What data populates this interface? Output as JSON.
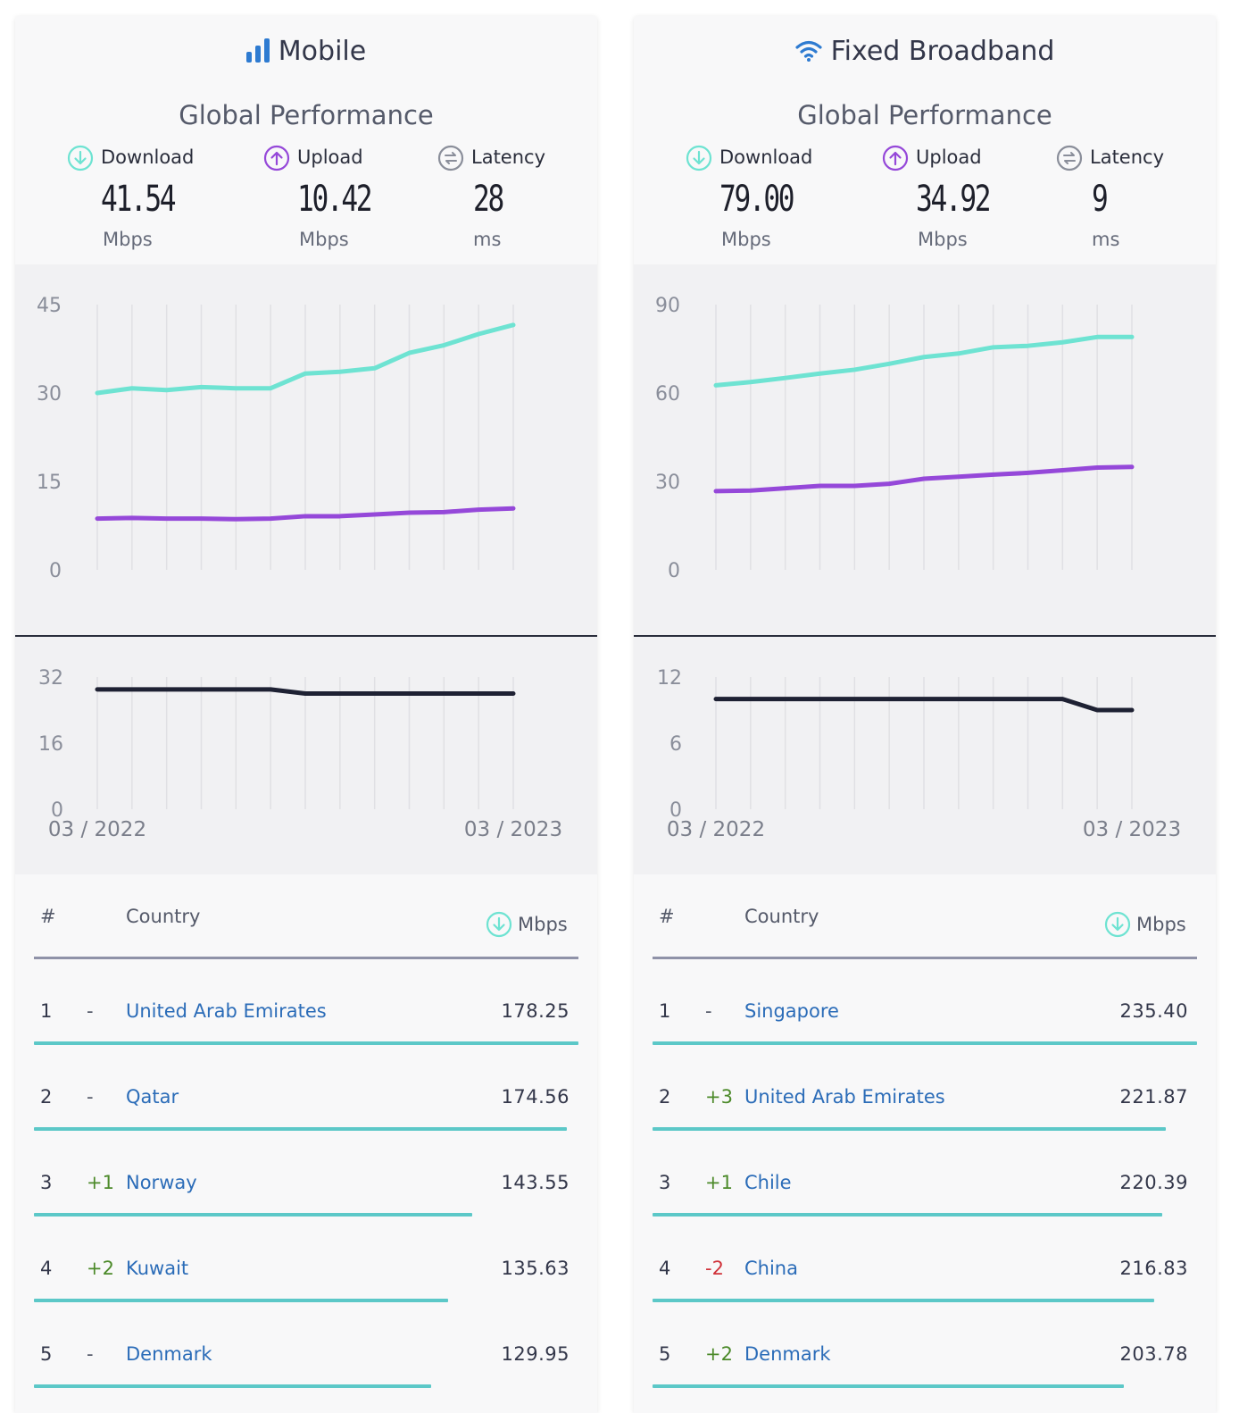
{
  "colors": {
    "download": "#6ee3d2",
    "upload": "#9548d9",
    "latency": "#1e2133",
    "bar": "#5cc8c8",
    "link": "#2b6cb8",
    "icon_blue": "#2e7bd1"
  },
  "panels": [
    {
      "title": "Mobile",
      "title_icon": "signal-bars-icon",
      "subtitle": "Global Performance",
      "metrics": [
        {
          "label": "Download",
          "icon": "download-arrow-icon",
          "value": "41.54",
          "unit": "Mbps"
        },
        {
          "label": "Upload",
          "icon": "upload-arrow-icon",
          "value": "10.42",
          "unit": "Mbps"
        },
        {
          "label": "Latency",
          "icon": "latency-icon",
          "value": "28",
          "unit": "ms"
        }
      ],
      "table_header": {
        "rank": "#",
        "country": "Country",
        "value": "Mbps"
      },
      "rows": [
        {
          "rank": "1",
          "change": "-",
          "country": "United Arab Emirates",
          "value": "178.25",
          "fraction": 1.0
        },
        {
          "rank": "2",
          "change": "-",
          "country": "Qatar",
          "value": "174.56",
          "fraction": 0.979
        },
        {
          "rank": "3",
          "change": "+1",
          "country": "Norway",
          "value": "143.55",
          "fraction": 0.805
        },
        {
          "rank": "4",
          "change": "+2",
          "country": "Kuwait",
          "value": "135.63",
          "fraction": 0.761
        },
        {
          "rank": "5",
          "change": "-",
          "country": "Denmark",
          "value": "129.95",
          "fraction": 0.729
        }
      ]
    },
    {
      "title": "Fixed Broadband",
      "title_icon": "wifi-icon",
      "subtitle": "Global Performance",
      "metrics": [
        {
          "label": "Download",
          "icon": "download-arrow-icon",
          "value": "79.00",
          "unit": "Mbps"
        },
        {
          "label": "Upload",
          "icon": "upload-arrow-icon",
          "value": "34.92",
          "unit": "Mbps"
        },
        {
          "label": "Latency",
          "icon": "latency-icon",
          "value": "9",
          "unit": "ms"
        }
      ],
      "table_header": {
        "rank": "#",
        "country": "Country",
        "value": "Mbps"
      },
      "rows": [
        {
          "rank": "1",
          "change": "-",
          "country": "Singapore",
          "value": "235.40",
          "fraction": 1.0
        },
        {
          "rank": "2",
          "change": "+3",
          "country": "United Arab Emirates",
          "value": "221.87",
          "fraction": 0.943
        },
        {
          "rank": "3",
          "change": "+1",
          "country": "Chile",
          "value": "220.39",
          "fraction": 0.936
        },
        {
          "rank": "4",
          "change": "-2",
          "country": "China",
          "value": "216.83",
          "fraction": 0.921
        },
        {
          "rank": "5",
          "change": "+2",
          "country": "Denmark",
          "value": "203.78",
          "fraction": 0.866
        }
      ]
    }
  ],
  "chart_data": [
    {
      "type": "line",
      "panel": "Mobile",
      "x": [
        "03 / 2022",
        "04 / 2022",
        "05 / 2022",
        "06 / 2022",
        "07 / 2022",
        "08 / 2022",
        "09 / 2022",
        "10 / 2022",
        "11 / 2022",
        "12 / 2022",
        "01 / 2023",
        "02 / 2023",
        "03 / 2023"
      ],
      "x_tick_labels": [
        "03 / 2022",
        "03 / 2023"
      ],
      "speed": {
        "ylim": [
          0,
          45
        ],
        "yticks": [
          0,
          15,
          30,
          45
        ],
        "series": [
          {
            "values": [
              30.0,
              30.8,
              30.5,
              31.0,
              30.8,
              30.8,
              33.3,
              33.6,
              34.2,
              36.8,
              38.1,
              40.0,
              41.54
            ]
          },
          {
            "values": [
              8.7,
              8.8,
              8.7,
              8.7,
              8.6,
              8.7,
              9.1,
              9.1,
              9.4,
              9.7,
              9.8,
              10.2,
              10.42
            ]
          }
        ]
      },
      "latency": {
        "ylim": [
          0,
          32
        ],
        "yticks": [
          0,
          16,
          32
        ],
        "series": [
          {
            "values": [
              29,
              29,
              29,
              29,
              29,
              29,
              28,
              28,
              28,
              28,
              28,
              28,
              28
            ]
          }
        ]
      },
      "grid": true
    },
    {
      "type": "line",
      "panel": "Fixed Broadband",
      "x": [
        "03 / 2022",
        "04 / 2022",
        "05 / 2022",
        "06 / 2022",
        "07 / 2022",
        "08 / 2022",
        "09 / 2022",
        "10 / 2022",
        "11 / 2022",
        "12 / 2022",
        "01 / 2023",
        "02 / 2023",
        "03 / 2023"
      ],
      "x_tick_labels": [
        "03 / 2022",
        "03 / 2023"
      ],
      "speed": {
        "ylim": [
          0,
          90
        ],
        "yticks": [
          0,
          30,
          60,
          90
        ],
        "series": [
          {
            "values": [
              62.6,
              63.7,
              65.1,
              66.6,
              67.9,
              69.9,
              72.2,
              73.4,
              75.5,
              76.0,
              77.2,
              79.0,
              79.0
            ]
          },
          {
            "values": [
              26.7,
              26.9,
              27.7,
              28.5,
              28.5,
              29.2,
              30.9,
              31.6,
              32.3,
              32.9,
              33.8,
              34.7,
              34.92
            ]
          }
        ]
      },
      "latency": {
        "ylim": [
          0,
          12
        ],
        "yticks": [
          0,
          6,
          12
        ],
        "series": [
          {
            "values": [
              10,
              10,
              10,
              10,
              10,
              10,
              10,
              10,
              10,
              10,
              10,
              9,
              9
            ]
          }
        ]
      },
      "grid": true
    }
  ]
}
